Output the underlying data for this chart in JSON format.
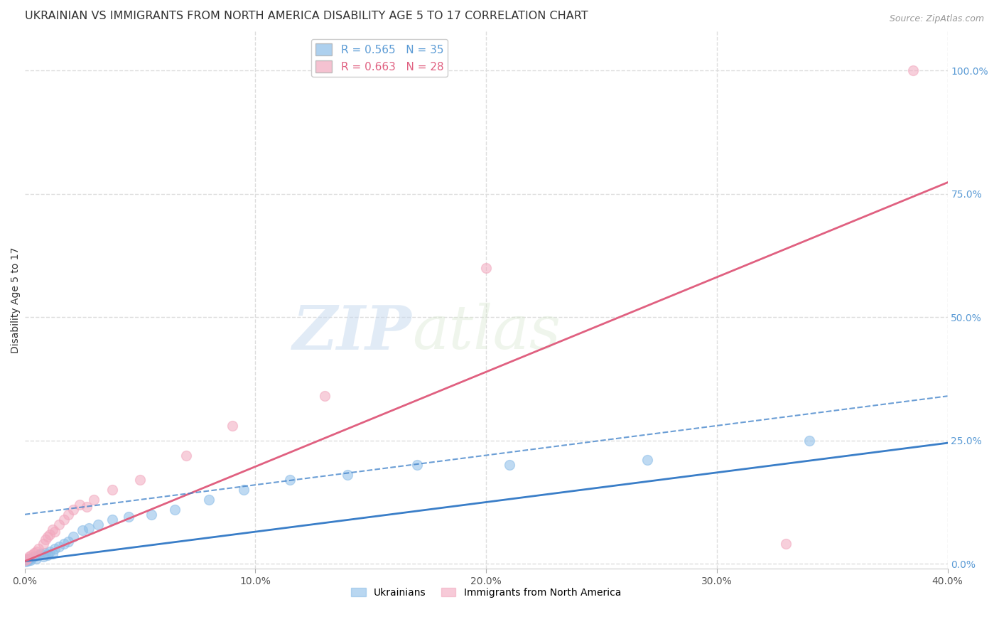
{
  "title": "UKRAINIAN VS IMMIGRANTS FROM NORTH AMERICA DISABILITY AGE 5 TO 17 CORRELATION CHART",
  "source": "Source: ZipAtlas.com",
  "ylabel": "Disability Age 5 to 17",
  "xlim": [
    0.0,
    0.4
  ],
  "ylim": [
    -0.01,
    1.08
  ],
  "xticks": [
    0.0,
    0.1,
    0.2,
    0.3,
    0.4
  ],
  "xtick_labels": [
    "0.0%",
    "10.0%",
    "20.0%",
    "30.0%",
    "40.0%"
  ],
  "yticks_right": [
    0.0,
    0.25,
    0.5,
    0.75,
    1.0
  ],
  "ytick_labels_right": [
    "0.0%",
    "25.0%",
    "50.0%",
    "75.0%",
    "100.0%"
  ],
  "grid_color": "#dddddd",
  "background_color": "#ffffff",
  "watermark_zip": "ZIP",
  "watermark_atlas": "atlas",
  "series1_label": "Ukrainians",
  "series1_color": "#8BBDE8",
  "series1_line_color": "#3A7EC8",
  "series1_R": 0.565,
  "series1_N": 35,
  "series2_label": "Immigrants from North America",
  "series2_color": "#F2A8BE",
  "series2_line_color": "#E06080",
  "series2_R": 0.663,
  "series2_N": 28,
  "s1_x": [
    0.0005,
    0.001,
    0.0015,
    0.002,
    0.0025,
    0.003,
    0.004,
    0.005,
    0.006,
    0.007,
    0.008,
    0.009,
    0.01,
    0.011,
    0.012,
    0.013,
    0.015,
    0.017,
    0.019,
    0.021,
    0.025,
    0.028,
    0.032,
    0.038,
    0.045,
    0.055,
    0.065,
    0.08,
    0.095,
    0.115,
    0.14,
    0.17,
    0.21,
    0.27,
    0.34
  ],
  "s1_y": [
    0.005,
    0.008,
    0.006,
    0.01,
    0.007,
    0.012,
    0.015,
    0.01,
    0.018,
    0.02,
    0.015,
    0.022,
    0.018,
    0.025,
    0.02,
    0.03,
    0.035,
    0.04,
    0.045,
    0.055,
    0.068,
    0.072,
    0.08,
    0.09,
    0.095,
    0.1,
    0.11,
    0.13,
    0.15,
    0.17,
    0.18,
    0.2,
    0.2,
    0.21,
    0.25
  ],
  "s2_x": [
    0.0005,
    0.001,
    0.002,
    0.003,
    0.004,
    0.005,
    0.006,
    0.008,
    0.009,
    0.01,
    0.011,
    0.012,
    0.013,
    0.015,
    0.017,
    0.019,
    0.021,
    0.024,
    0.027,
    0.03,
    0.038,
    0.05,
    0.07,
    0.09,
    0.13,
    0.2,
    0.33,
    0.385
  ],
  "s2_y": [
    0.008,
    0.01,
    0.015,
    0.018,
    0.022,
    0.025,
    0.03,
    0.04,
    0.05,
    0.055,
    0.06,
    0.07,
    0.065,
    0.08,
    0.09,
    0.1,
    0.11,
    0.12,
    0.115,
    0.13,
    0.15,
    0.17,
    0.22,
    0.28,
    0.34,
    0.6,
    0.04,
    1.0
  ],
  "title_fontsize": 11.5,
  "axis_label_fontsize": 10,
  "tick_fontsize": 10,
  "legend_fontsize": 11
}
